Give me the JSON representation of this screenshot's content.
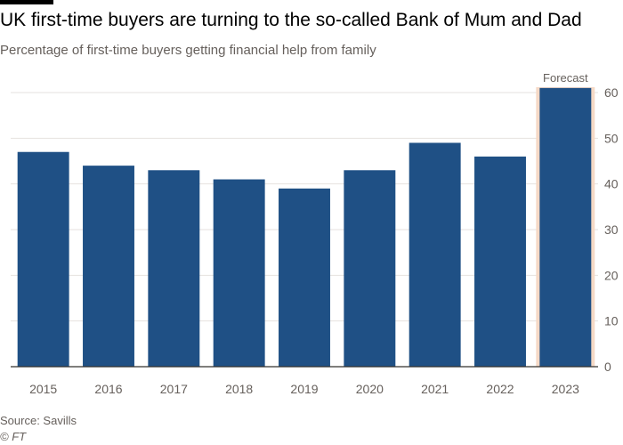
{
  "title": "UK first-time buyers are turning to the so-called Bank of Mum and Dad",
  "subtitle": "Percentage of first-time buyers getting financial help from family",
  "source": "Source: Savills",
  "credit": "© FT",
  "colors": {
    "bar": "#1f5085",
    "forecast_band": "#f5d9c6",
    "grid": "#e6e2df",
    "axis": "#33302e",
    "text": "#66605c"
  },
  "chart_data": {
    "type": "bar",
    "categories": [
      "2015",
      "2016",
      "2017",
      "2018",
      "2019",
      "2020",
      "2021",
      "2022",
      "2023"
    ],
    "values": [
      47,
      44,
      43,
      41,
      39,
      43,
      49,
      46,
      61
    ],
    "ylim": [
      0,
      60
    ],
    "yticks": [
      0,
      10,
      20,
      30,
      40,
      50,
      60
    ],
    "yaxis_side": "right",
    "grid": true,
    "annotation": {
      "text": "Forecast",
      "category": "2023"
    }
  }
}
